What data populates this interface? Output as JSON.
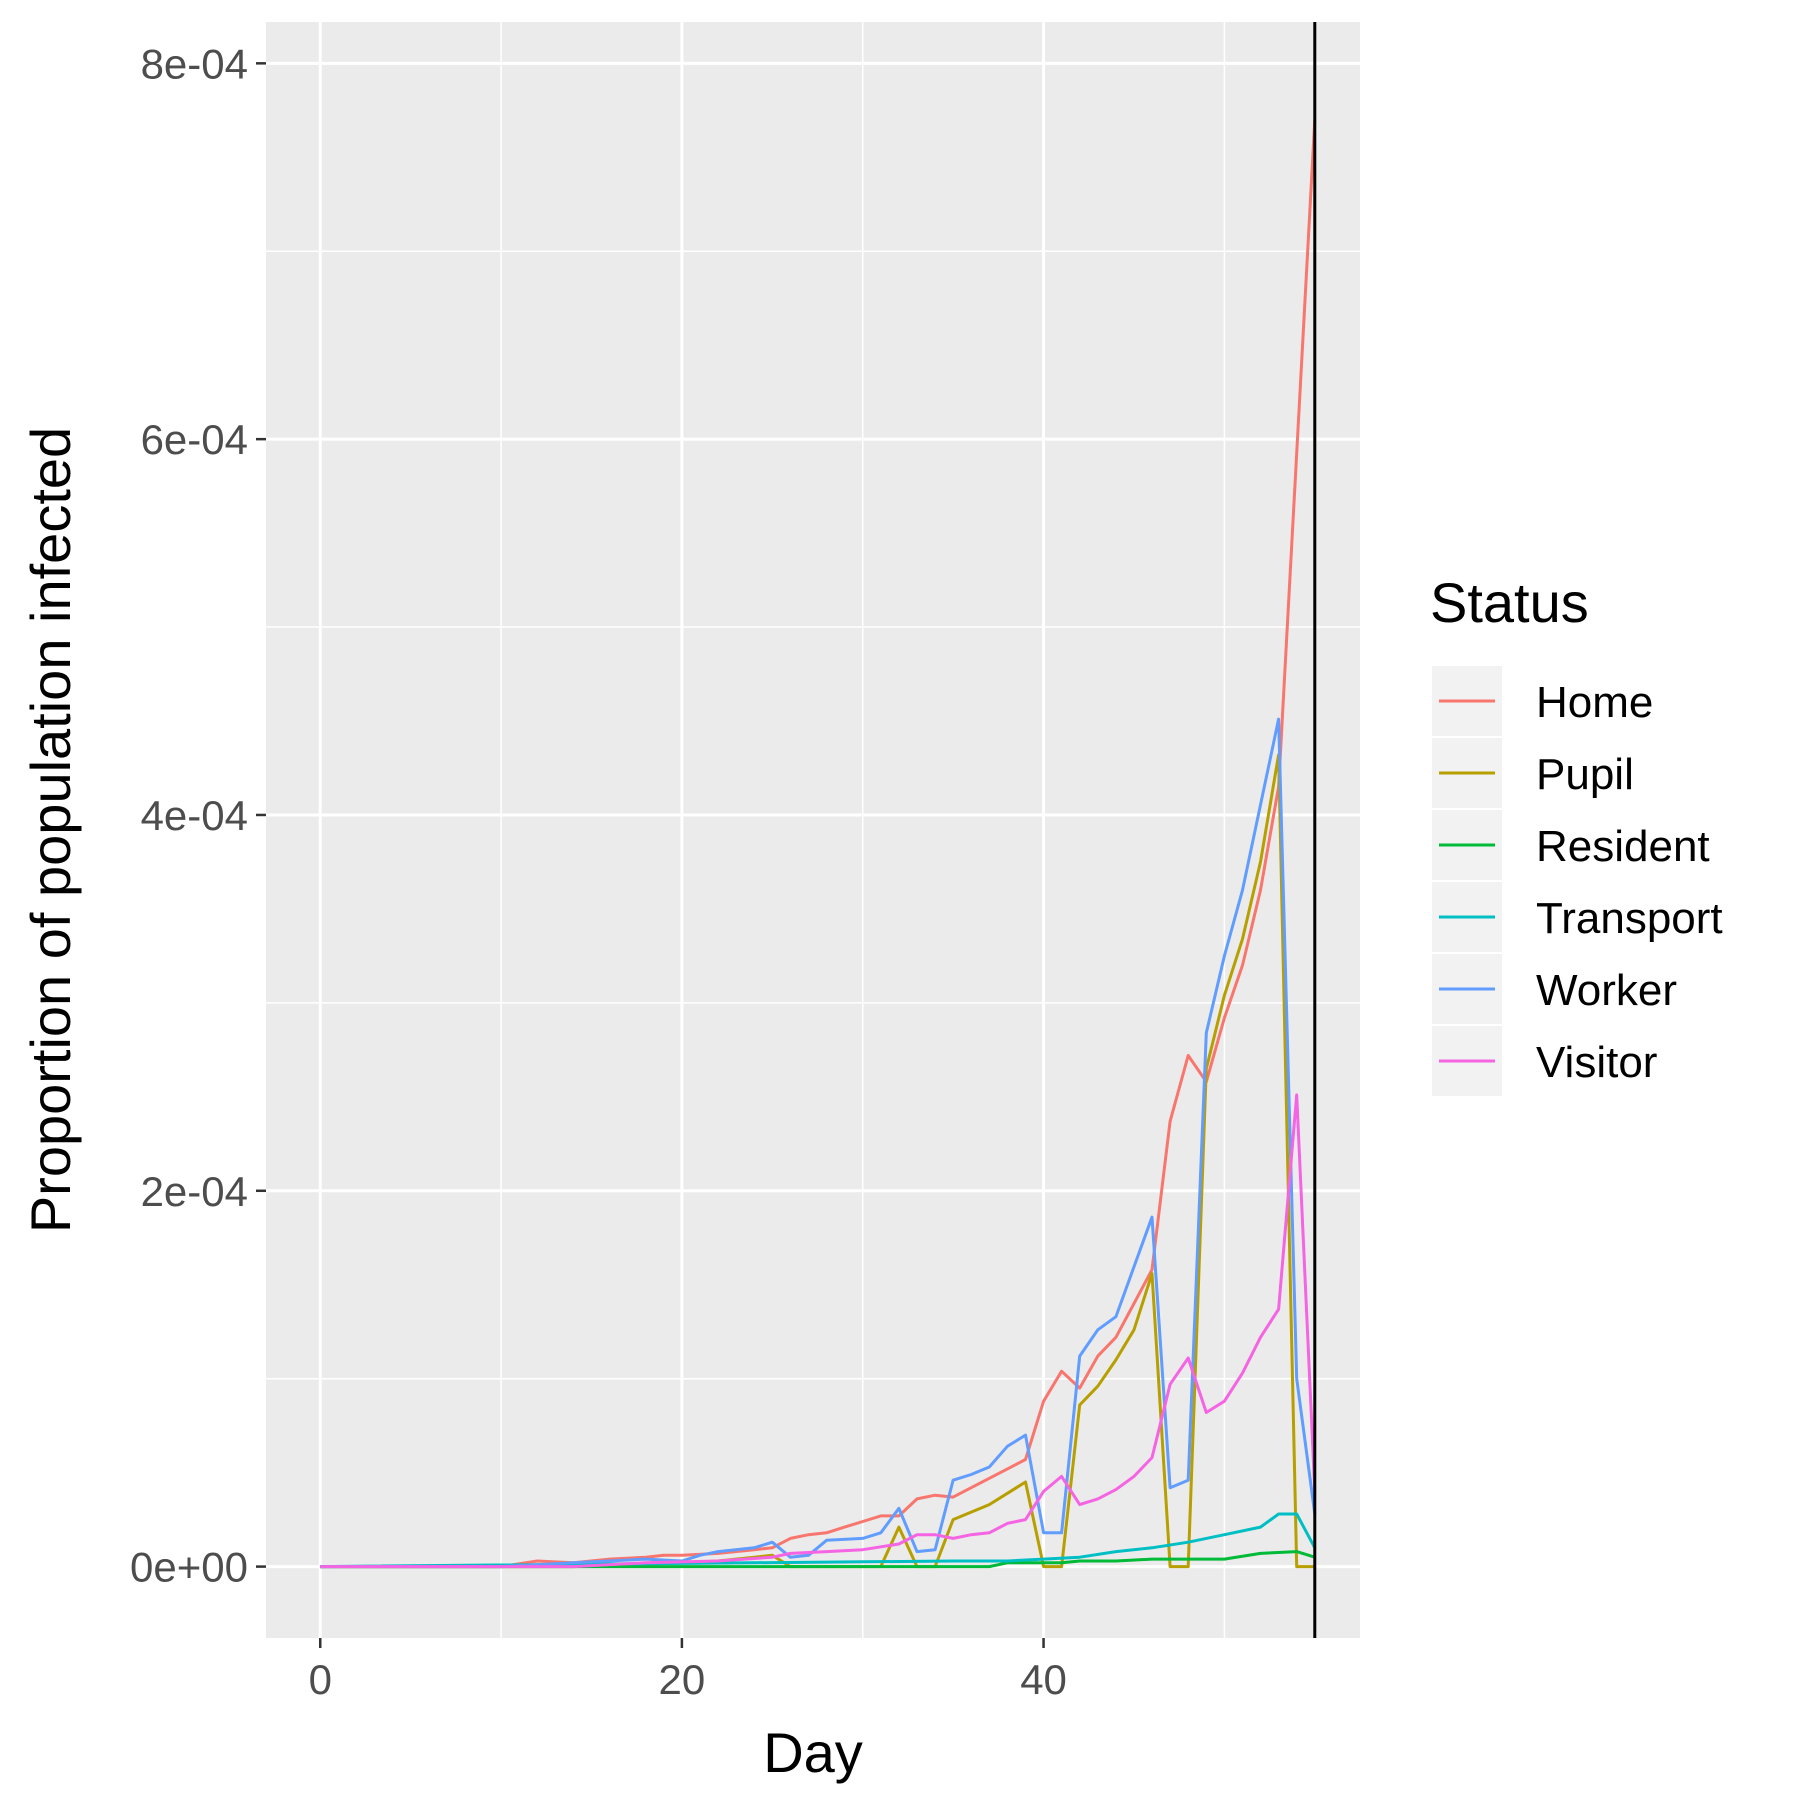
{
  "chart_data": {
    "type": "line",
    "xlabel": "Day",
    "ylabel": "Proportion of population infected",
    "xlim": [
      -3,
      57.5
    ],
    "ylim": [
      -3.8e-05,
      0.000822
    ],
    "x_ticks": [
      0,
      20,
      40
    ],
    "x_tick_labels": [
      "0",
      "20",
      "40"
    ],
    "x_minor_ticks": [
      10,
      30,
      50
    ],
    "y_ticks": [
      0,
      0.0002,
      0.0004,
      0.0006,
      0.0008
    ],
    "y_tick_labels": [
      "0e+00",
      "2e-04",
      "4e-04",
      "6e-04",
      "8e-04"
    ],
    "y_minor_ticks": [
      0.0001,
      0.0003,
      0.0005,
      0.0007
    ],
    "vline_x": 55,
    "grid": true,
    "legend_position": "right",
    "legend_title": "Status",
    "colors": {
      "panel_background": "#ebebeb",
      "grid": "#ffffff",
      "vline": "#000000"
    },
    "series": [
      {
        "name": "Home",
        "color": "#f8766d",
        "x": [
          0,
          10,
          12,
          14,
          16,
          18,
          19,
          20,
          22,
          24,
          25,
          26,
          27,
          28,
          29,
          30,
          31,
          32,
          33,
          34,
          35,
          36,
          37,
          38,
          39,
          40,
          41,
          42,
          43,
          44,
          45,
          46,
          47,
          48,
          49,
          50,
          51,
          52,
          53,
          55
        ],
        "y": [
          0,
          0,
          3e-06,
          2e-06,
          4e-06,
          5e-06,
          6e-06,
          6e-06,
          7e-06,
          9e-06,
          1e-05,
          1.5e-05,
          1.7e-05,
          1.8e-05,
          2.1e-05,
          2.4e-05,
          2.7e-05,
          2.7e-05,
          3.6e-05,
          3.8e-05,
          3.7e-05,
          4.2e-05,
          4.7e-05,
          5.2e-05,
          5.7e-05,
          8.8e-05,
          0.000104,
          9.5e-05,
          0.000112,
          0.000122,
          0.00014,
          0.000158,
          0.000237,
          0.000272,
          0.000258,
          0.000292,
          0.00032,
          0.00036,
          0.000415,
          0.00077
        ]
      },
      {
        "name": "Pupil",
        "color": "#b79f00",
        "x": [
          0,
          14,
          20,
          22,
          24,
          25,
          26,
          30,
          31,
          32,
          33,
          34,
          35,
          36,
          37,
          38,
          39,
          40,
          41,
          42,
          43,
          44,
          45,
          46,
          47,
          48,
          49,
          50,
          51,
          52,
          53,
          54,
          55
        ],
        "y": [
          0,
          0,
          2e-06,
          3e-06,
          5e-06,
          6e-06,
          0,
          0,
          0,
          2.1e-05,
          0,
          0,
          2.5e-05,
          2.9e-05,
          3.3e-05,
          3.9e-05,
          4.5e-05,
          0,
          0,
          8.6e-05,
          9.6e-05,
          0.00011,
          0.000126,
          0.000156,
          0,
          0,
          0.000265,
          0.000304,
          0.000334,
          0.000375,
          0.000432,
          0,
          0
        ]
      },
      {
        "name": "Resident",
        "color": "#00ba38",
        "x": [
          0,
          28,
          37,
          38,
          40,
          41,
          42,
          44,
          46,
          48,
          50,
          52,
          54,
          55
        ],
        "y": [
          0,
          0,
          0,
          2e-06,
          2e-06,
          2e-06,
          3e-06,
          3e-06,
          4e-06,
          4e-06,
          4e-06,
          7e-06,
          8e-06,
          5e-06
        ]
      },
      {
        "name": "Transport",
        "color": "#00bfc4",
        "x": [
          0,
          35,
          38,
          40,
          42,
          44,
          46,
          48,
          50,
          52,
          53,
          54,
          55
        ],
        "y": [
          0,
          3e-06,
          3e-06,
          4e-06,
          5e-06,
          8e-06,
          1e-05,
          1.3e-05,
          1.7e-05,
          2.1e-05,
          2.8e-05,
          2.8e-05,
          1e-05
        ]
      },
      {
        "name": "Worker",
        "color": "#619cff",
        "x": [
          0,
          10,
          14,
          18,
          20,
          21,
          22,
          24,
          25,
          26,
          27,
          28,
          30,
          31,
          32,
          33,
          34,
          35,
          36,
          37,
          38,
          39,
          40,
          41,
          42,
          43,
          44,
          46,
          47,
          48,
          49,
          50,
          51,
          53,
          54,
          55
        ],
        "y": [
          0,
          0,
          2e-06,
          4e-06,
          3e-06,
          6e-06,
          8e-06,
          1e-05,
          1.3e-05,
          5e-06,
          6e-06,
          1.4e-05,
          1.5e-05,
          1.8e-05,
          3.1e-05,
          8e-06,
          9e-06,
          4.6e-05,
          4.9e-05,
          5.3e-05,
          6.4e-05,
          7e-05,
          1.8e-05,
          1.8e-05,
          0.000112,
          0.000126,
          0.000133,
          0.000186,
          4.2e-05,
          4.6e-05,
          0.000284,
          0.000325,
          0.00036,
          0.000451,
          0.0001,
          2.8e-05
        ]
      },
      {
        "name": "Visitor",
        "color": "#f564e3",
        "x": [
          0,
          14,
          18,
          22,
          25,
          26,
          28,
          30,
          32,
          33,
          34,
          35,
          36,
          37,
          38,
          39,
          40,
          41,
          42,
          43,
          44,
          45,
          46,
          47,
          48,
          49,
          50,
          51,
          52,
          53,
          54,
          55
        ],
        "y": [
          0,
          0,
          2e-06,
          3e-06,
          5e-06,
          7e-06,
          8e-06,
          9e-06,
          1.2e-05,
          1.7e-05,
          1.7e-05,
          1.5e-05,
          1.7e-05,
          1.8e-05,
          2.3e-05,
          2.5e-05,
          4e-05,
          4.8e-05,
          3.3e-05,
          3.6e-05,
          4.1e-05,
          4.8e-05,
          5.8e-05,
          9.7e-05,
          0.000111,
          8.2e-05,
          8.8e-05,
          0.000103,
          0.000122,
          0.000137,
          0.000251,
          4e-05
        ]
      }
    ]
  }
}
